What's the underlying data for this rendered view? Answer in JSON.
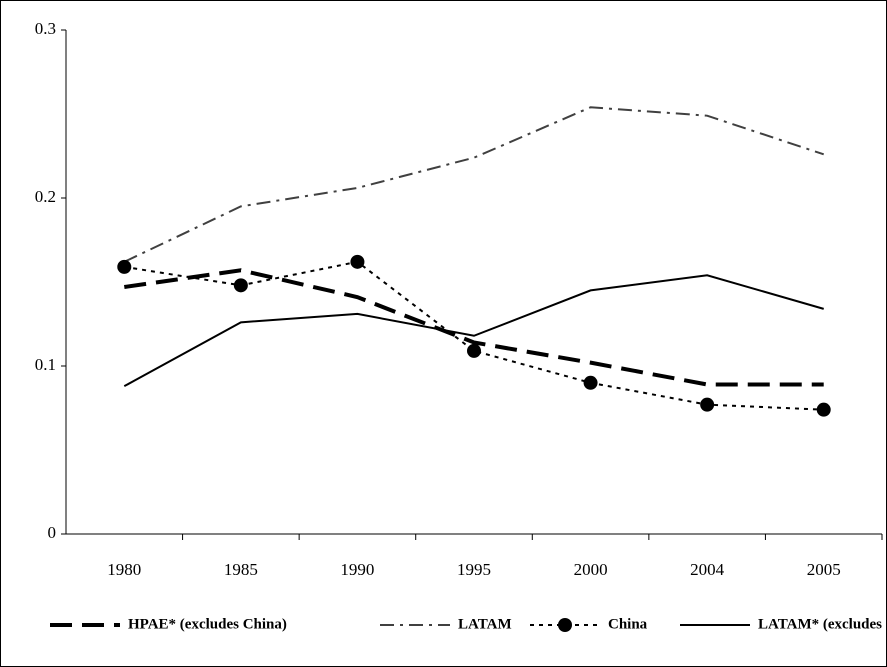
{
  "chart_data": {
    "type": "line",
    "categories": [
      "1980",
      "1985",
      "1990",
      "1995",
      "2000",
      "2004",
      "2005"
    ],
    "series": [
      {
        "name": "HPAE* (excludes China)",
        "color": "#000000",
        "line_style": "dashed",
        "values": [
          0.147,
          0.157,
          0.141,
          0.114,
          0.102,
          0.089,
          0.089
        ]
      },
      {
        "name": "LATAM",
        "color": "#404040",
        "line_style": "dashdot",
        "values": [
          0.162,
          0.195,
          0.206,
          0.224,
          0.254,
          0.249,
          0.226
        ]
      },
      {
        "name": "China",
        "color": "#000000",
        "line_style": "dotted",
        "marker": "circle",
        "values": [
          0.159,
          0.148,
          0.162,
          0.109,
          0.09,
          0.077,
          0.074
        ]
      },
      {
        "name": "LATAM* (excludes Mexico)",
        "color": "#000000",
        "line_style": "solid",
        "values": [
          0.088,
          0.126,
          0.131,
          0.118,
          0.145,
          0.154,
          0.134
        ]
      }
    ],
    "ylim": [
      0,
      0.3
    ],
    "yticks": [
      0,
      0.1,
      0.2,
      0.3
    ],
    "grid": false,
    "legend": "bottom"
  }
}
